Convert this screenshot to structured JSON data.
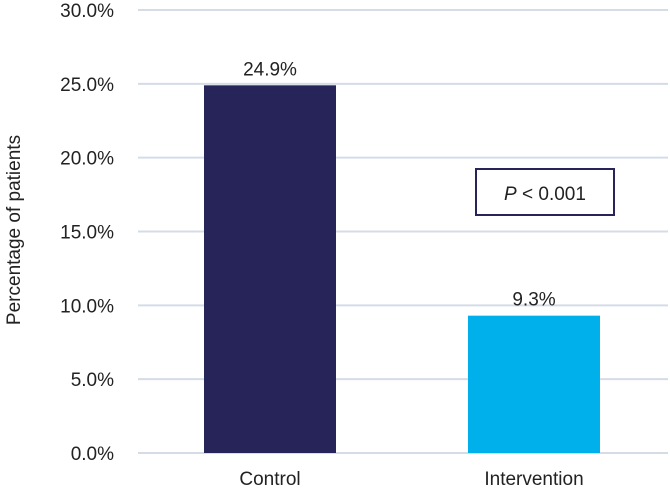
{
  "chart_data": {
    "type": "bar",
    "categories": [
      "Control",
      "Intervention"
    ],
    "values": [
      24.9,
      9.3
    ],
    "data_labels": [
      "24.9%",
      "9.3%"
    ],
    "colors": [
      "#27245a",
      "#00b0eb"
    ],
    "title": "",
    "xlabel": "",
    "ylabel": "Percentage of patients",
    "ylim": [
      0,
      30
    ],
    "yticks": [
      0,
      5,
      10,
      15,
      20,
      25,
      30
    ],
    "ytick_labels": [
      "0.0%",
      "5.0%",
      "10.0%",
      "15.0%",
      "20.0%",
      "25.0%",
      "30.0%"
    ],
    "grid": true,
    "annotation": {
      "italic": "P",
      "rest": " < 0.001"
    }
  }
}
